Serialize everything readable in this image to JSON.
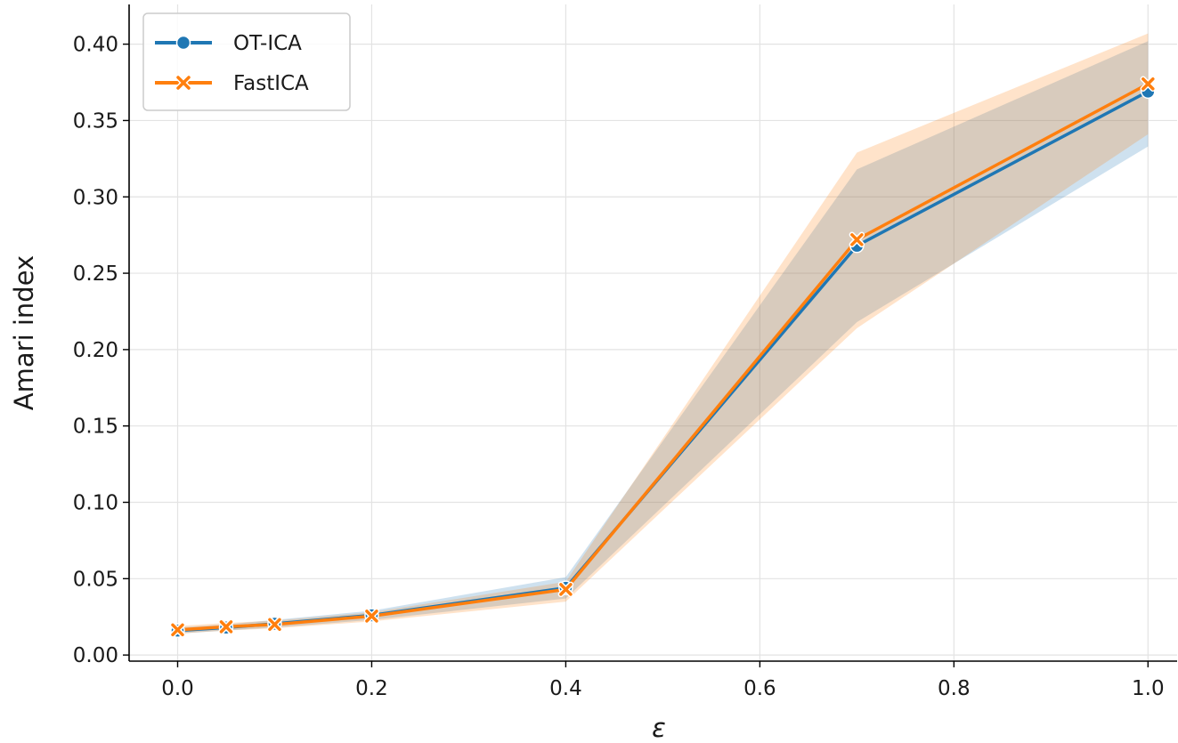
{
  "chart_data": {
    "type": "line",
    "xlabel": "ε",
    "ylabel": "Amari index",
    "xlim": [
      -0.05,
      1.03
    ],
    "ylim": [
      -0.004,
      0.426
    ],
    "x_ticks": [
      0.0,
      0.2,
      0.4,
      0.6,
      0.8,
      1.0
    ],
    "x_tick_labels": [
      "0.0",
      "0.2",
      "0.4",
      "0.6",
      "0.8",
      "1.0"
    ],
    "y_ticks": [
      0.0,
      0.05,
      0.1,
      0.15,
      0.2,
      0.25,
      0.3,
      0.35,
      0.4
    ],
    "y_tick_labels": [
      "0.00",
      "0.05",
      "0.10",
      "0.15",
      "0.20",
      "0.25",
      "0.30",
      "0.35",
      "0.40"
    ],
    "grid": true,
    "legend_position": "top-left",
    "x": [
      0.0,
      0.05,
      0.1,
      0.2,
      0.4,
      0.7,
      1.0
    ],
    "series": [
      {
        "name": "OT-ICA",
        "color": "#1f77b4",
        "marker": "circle",
        "values": [
          0.016,
          0.018,
          0.0205,
          0.026,
          0.044,
          0.268,
          0.369
        ],
        "lower": [
          0.014,
          0.016,
          0.018,
          0.023,
          0.037,
          0.218,
          0.333
        ],
        "upper": [
          0.018,
          0.02,
          0.023,
          0.029,
          0.051,
          0.318,
          0.402
        ]
      },
      {
        "name": "FastICA",
        "color": "#ff7f0e",
        "marker": "x",
        "values": [
          0.0165,
          0.0185,
          0.02,
          0.0255,
          0.043,
          0.272,
          0.374
        ],
        "lower": [
          0.014,
          0.016,
          0.0175,
          0.022,
          0.035,
          0.214,
          0.341
        ],
        "upper": [
          0.019,
          0.021,
          0.0225,
          0.028,
          0.048,
          0.329,
          0.407
        ]
      }
    ]
  }
}
